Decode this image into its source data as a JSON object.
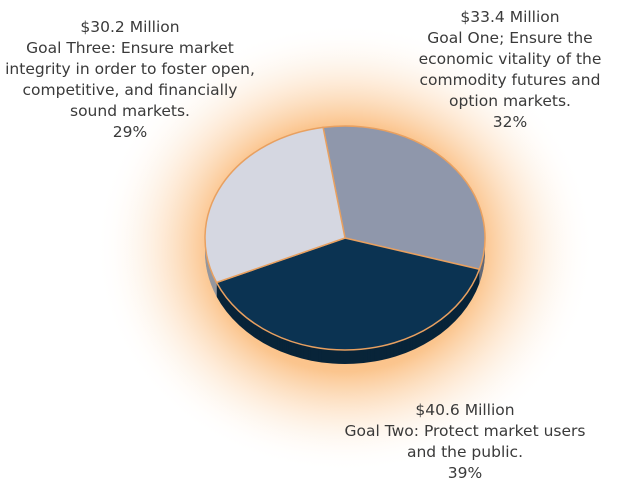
{
  "chart_data": {
    "type": "pie",
    "categories": [
      "Goal One; Ensure the economic vitality of the commodity futures and option markets.",
      "Goal Two: Protect market users and the public.",
      "Goal Three: Ensure market integrity in order to foster open, competitive, and financially sound markets."
    ],
    "amount_labels": [
      "$33.4 Million",
      "$40.6 Million",
      "$30.2 Million"
    ],
    "values": [
      32,
      39,
      29
    ],
    "value_labels": [
      "32%",
      "39%",
      "29%"
    ],
    "colors": [
      "#8f97ab",
      "#0b3352",
      "#d5d7e1"
    ]
  }
}
